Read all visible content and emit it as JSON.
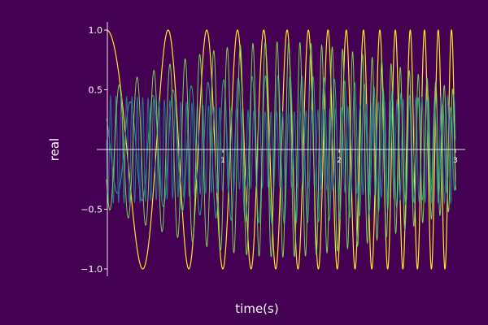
{
  "chart_data": {
    "type": "line",
    "title": "",
    "xlabel": "time(s)",
    "ylabel": "real",
    "xlim": [
      0,
      3
    ],
    "ylim": [
      -1.05,
      1.05
    ],
    "xticks": [
      {
        "value": 1,
        "label": "1"
      },
      {
        "value": 2,
        "label": "2"
      },
      {
        "value": 3,
        "label": "3"
      }
    ],
    "yticks": [
      {
        "value": 1.0,
        "label": "1.0"
      },
      {
        "value": 0.5,
        "label": "0.5"
      },
      {
        "value": -0.5,
        "label": "−0.5"
      },
      {
        "value": -1.0,
        "label": "−1.0"
      }
    ],
    "grid": false,
    "legend": "none",
    "series": [
      {
        "color": "#fde725",
        "width": 1.2,
        "amplitude": 1.0,
        "freq_start": 1.2,
        "freq_end": 9.0,
        "envelope": "flat"
      },
      {
        "color": "#22a884",
        "width": 1.0,
        "amplitude": 0.62,
        "freq_start": 4.0,
        "freq_end": 15.0,
        "envelope": "bulge"
      },
      {
        "color": "#2a788e",
        "width": 1.0,
        "amplitude": 0.45,
        "freq_start": 22.0,
        "freq_end": 18.0,
        "envelope": "tapered"
      },
      {
        "color": "#7ad151",
        "width": 1.0,
        "amplitude": 0.9,
        "freq_start": 6.0,
        "freq_end": 14.0,
        "envelope": "bulge"
      }
    ]
  }
}
